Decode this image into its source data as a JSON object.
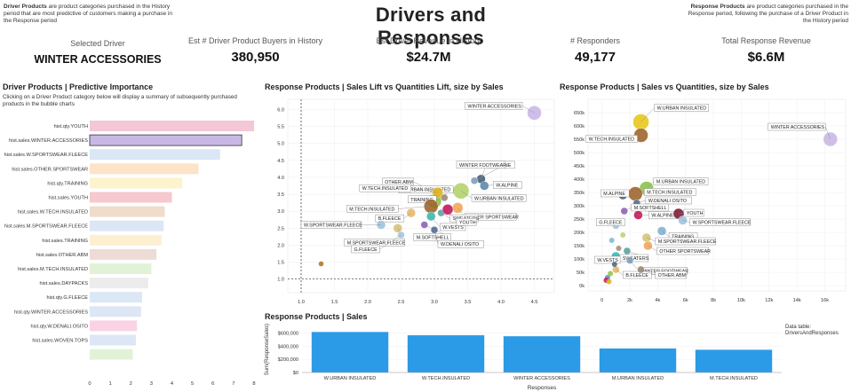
{
  "header": {
    "left_bold": "Driver Products",
    "left_rest": " are product categories purchased in the History period that are most predictive of customers making a purchase in the Response period",
    "title": "Drivers and Responses",
    "right_bold": "Response Products",
    "right_rest": " are product categories purchased in the Response period, following the purchase of a Driver Product in the History period"
  },
  "kpis": [
    {
      "label": "Selected Driver",
      "value": "WINTER ACCESSORIES"
    },
    {
      "label": "Est # Driver Product Buyers in History",
      "value": "380,950"
    },
    {
      "label": "Est Driver Revenue in History",
      "value": "$24.7M"
    },
    {
      "label": "# Responders",
      "value": "49,177"
    },
    {
      "label": "Total Response Revenue",
      "value": "$6.6M"
    }
  ],
  "colors": {
    "bar_blue": "#2b9be8",
    "selected_outline": "#333333",
    "selected_fill": "#c9b8e6"
  },
  "chart_data": [
    {
      "id": "importance",
      "type": "bar",
      "orientation": "horizontal",
      "title": "Driver Products | Predictive Importance",
      "subtitle": "Clicking on a Driver Product category below will display a summary of subsequently purchased products in the bubble charts",
      "categories": [
        "hist.qty.YOUTH",
        "hist.sales.WINTER.ACCESSORIES",
        "hist.sales.W.SPORTSWEAR.FLEECE",
        "hist.sales.OTHER.SPORTSWEAR",
        "hist.qty.TRAINING",
        "hist.sales.YOUTH",
        "hist.sales.W.TECH.INSULATED",
        "hist.sales.M.SPORTSWEAR.FLEECE",
        "hist.sales.TRAINING",
        "hist.sales.OTHER.ABM",
        "hist.sales.M.TECH.INSULATED",
        "hist.sales.DAYPACKS",
        "hist.qty.G.FLEECE",
        "hist.qty.WINTER.ACCESSORIES",
        "hist.qty.W.DENALI.OSITO",
        "hist.sales.WOVEN.TOPS",
        ""
      ],
      "values": [
        8.0,
        7.4,
        6.35,
        5.3,
        4.5,
        4.0,
        3.65,
        3.6,
        3.5,
        3.25,
        3.0,
        2.85,
        2.55,
        2.5,
        2.3,
        2.25,
        2.1
      ],
      "colors": [
        "#f4c7d6",
        "#c9b8e6",
        "#dbe7f6",
        "#fde3c8",
        "#fdf3cc",
        "#f6c8cf",
        "#efdccb",
        "#dde6f4",
        "#fdf0d2",
        "#ecdcd5",
        "#e2f2d8",
        "#ececec",
        "#dce7f6",
        "#dde6f4",
        "#f9d3e4",
        "#dde6f4",
        "#e2f2d8"
      ],
      "selected_index": 1,
      "xlim": [
        0,
        8
      ],
      "xticks": [
        "0",
        "1",
        "2",
        "3",
        "4",
        "5",
        "6",
        "7",
        "8"
      ]
    },
    {
      "id": "lift",
      "type": "scatter",
      "title": "Response Products | Sales Lift vs Quantities Lift, size by Sales",
      "xlim": [
        0.8,
        4.8
      ],
      "ylim": [
        0.6,
        6.3
      ],
      "xticks": [
        "1.0",
        "1.5",
        "2.0",
        "2.5",
        "3.0",
        "3.5",
        "4.0",
        "4.5"
      ],
      "yticks": [
        "1.0",
        "1.5",
        "2.0",
        "2.5",
        "3.0",
        "3.5",
        "4.0",
        "4.5",
        "5.0",
        "5.5",
        "6.0"
      ],
      "reference_lines": {
        "x": 1.0,
        "y": 1.0
      },
      "points": [
        {
          "label": "WINTER ACCESSORIES",
          "x": 4.5,
          "y": 5.9,
          "size": 8,
          "color": "#c9b8e6"
        },
        {
          "label": "M.ALPINE",
          "x": 3.7,
          "y": 3.95,
          "size": 5,
          "color": "#44617a"
        },
        {
          "label": "W.ALPINE",
          "x": 3.75,
          "y": 3.75,
          "size": 5,
          "color": "#5b8bb0"
        },
        {
          "label": "WINTER FOOTWEAR",
          "x": 3.6,
          "y": 3.9,
          "size": 4,
          "color": "#7fa0c0"
        },
        {
          "label": "W.URBAN INSULATED",
          "x": 3.4,
          "y": 3.6,
          "size": 9,
          "color": "#b4d36b"
        },
        {
          "label": "OTHER.ABM",
          "x": 3.15,
          "y": 3.4,
          "size": 4,
          "color": "#9a8a7a"
        },
        {
          "label": "M.URBAN INSULATED",
          "x": 3.0,
          "y": 3.3,
          "size": 8,
          "color": "#8bc34a"
        },
        {
          "label": "W.TECH.INSULATED",
          "x": 3.05,
          "y": 3.55,
          "size": 6,
          "color": "#e0b21b"
        },
        {
          "label": "TRAINING",
          "x": 2.95,
          "y": 3.35,
          "size": 5,
          "color": "#7fb3d5"
        },
        {
          "label": "M.TECH.INSULATED",
          "x": 2.95,
          "y": 3.15,
          "size": 8,
          "color": "#a0652c"
        },
        {
          "label": "OTHER SPORTSWEAR",
          "x": 3.35,
          "y": 3.1,
          "size": 6,
          "color": "#f2a65a"
        },
        {
          "label": "SWEATERS",
          "x": 3.1,
          "y": 2.95,
          "size": 4,
          "color": "#5ea3a3"
        },
        {
          "label": "B.FLEECE",
          "x": 2.65,
          "y": 2.95,
          "size": 5,
          "color": "#e8b86d"
        },
        {
          "label": "W.VESTS",
          "x": 2.95,
          "y": 2.85,
          "size": 5,
          "color": "#3bb9b0"
        },
        {
          "label": "YOUTH",
          "x": 3.2,
          "y": 3.05,
          "size": 6,
          "color": "#c2185b"
        },
        {
          "label": "W.SPORTSWEAR.FLEECE",
          "x": 2.2,
          "y": 2.6,
          "size": 5,
          "color": "#9ec3df"
        },
        {
          "label": "M.SOFTSHELL",
          "x": 2.85,
          "y": 2.6,
          "size": 4,
          "color": "#8e63b8"
        },
        {
          "label": "M.SPORTSWEAR.FLEECE",
          "x": 2.45,
          "y": 2.5,
          "size": 5,
          "color": "#d6c37a"
        },
        {
          "label": "W.DENALI OSITO",
          "x": 3.0,
          "y": 2.45,
          "size": 4,
          "color": "#4f6d8f"
        },
        {
          "label": "G.FLEECE",
          "x": 2.5,
          "y": 2.3,
          "size": 4,
          "color": "#a7c6e0"
        },
        {
          "label": "",
          "x": 1.3,
          "y": 1.45,
          "size": 3,
          "color": "#b5772e"
        }
      ]
    },
    {
      "id": "salesqty",
      "type": "scatter",
      "title": "Response Products | Sales vs Quantities, size by Sales",
      "xlim": [
        -1000,
        17500
      ],
      "ylim": [
        -20000,
        700000
      ],
      "xticks": [
        "0",
        "2k",
        "4k",
        "6k",
        "8k",
        "10k",
        "12k",
        "14k",
        "16k"
      ],
      "yticks": [
        "0k",
        "50k",
        "100k",
        "150k",
        "200k",
        "250k",
        "300k",
        "350k",
        "400k",
        "450k",
        "500k",
        "550k",
        "600k",
        "650k"
      ],
      "points": [
        {
          "label": "W.URBAN INSULATED",
          "x": 2800,
          "y": 615000,
          "size": 9,
          "color": "#e8c81c"
        },
        {
          "label": "W.TECH.INSULATED",
          "x": 2800,
          "y": 565000,
          "size": 8,
          "color": "#a0652c"
        },
        {
          "label": "WINTER ACCESSORIES",
          "x": 16400,
          "y": 550000,
          "size": 8,
          "color": "#c9b8e6"
        },
        {
          "label": "M.URBAN INSULATED",
          "x": 3200,
          "y": 365000,
          "size": 8,
          "color": "#8bc34a"
        },
        {
          "label": "M.TECH.INSULATED",
          "x": 2400,
          "y": 345000,
          "size": 8,
          "color": "#a0652c"
        },
        {
          "label": "M.ALPINE",
          "x": 1500,
          "y": 340000,
          "size": 5,
          "color": "#44617a"
        },
        {
          "label": "W.DENALI OSITO",
          "x": 2500,
          "y": 310000,
          "size": 4,
          "color": "#4f6d8f"
        },
        {
          "label": "M.SOFTSHELL",
          "x": 1600,
          "y": 280000,
          "size": 4,
          "color": "#8e63b8"
        },
        {
          "label": "W.ALPINE",
          "x": 2600,
          "y": 265000,
          "size": 5,
          "color": "#c2185b"
        },
        {
          "label": "YOUTH",
          "x": 5500,
          "y": 270000,
          "size": 6,
          "color": "#7b1e3a"
        },
        {
          "label": "W.SPORTSWEAR.FLEECE",
          "x": 5800,
          "y": 245000,
          "size": 5,
          "color": "#9ec3df"
        },
        {
          "label": "G.FLEECE",
          "x": 1000,
          "y": 225000,
          "size": 4,
          "color": "#a7c6e0"
        },
        {
          "label": "TRAINING",
          "x": 4300,
          "y": 205000,
          "size": 5,
          "color": "#7fb3d5"
        },
        {
          "label": "M.SPORTSWEAR.FLEECE",
          "x": 3200,
          "y": 180000,
          "size": 5,
          "color": "#d6c37a"
        },
        {
          "label": "OTHER SPORTSWEAR",
          "x": 3300,
          "y": 150000,
          "size": 5,
          "color": "#f2a65a"
        },
        {
          "label": "SWEATERS",
          "x": 1800,
          "y": 130000,
          "size": 4,
          "color": "#5ea3a3"
        },
        {
          "label": "W.VESTS",
          "x": 1000,
          "y": 110000,
          "size": 5,
          "color": "#3bb9b0"
        },
        {
          "label": "WINTER FOOTWEAR",
          "x": 2000,
          "y": 95000,
          "size": 4,
          "color": "#7fa0c0"
        },
        {
          "label": "B.FLEECE",
          "x": 1000,
          "y": 60000,
          "size": 4,
          "color": "#e8b86d"
        },
        {
          "label": "OTHER.ABM",
          "x": 2800,
          "y": 60000,
          "size": 4,
          "color": "#9a8a7a"
        }
      ]
    },
    {
      "id": "sales",
      "type": "bar",
      "title": "Response Products | Sales",
      "categories": [
        "W.URBAN INSULATED",
        "W.TECH.INSULATED",
        "WINTER ACCESSORIES",
        "M.URBAN INSULATED",
        "M.TECH.INSULATED"
      ],
      "values": [
        615000,
        565000,
        550000,
        365000,
        345000
      ],
      "ylim": [
        0,
        700000
      ],
      "yticks": [
        "$0",
        "$200,000",
        "$400,000",
        "$600,000"
      ],
      "xlabel": "Responses",
      "ylabel": "Sum(ResponseSales)",
      "note": "Data table:\nDriversAndResponses"
    }
  ]
}
